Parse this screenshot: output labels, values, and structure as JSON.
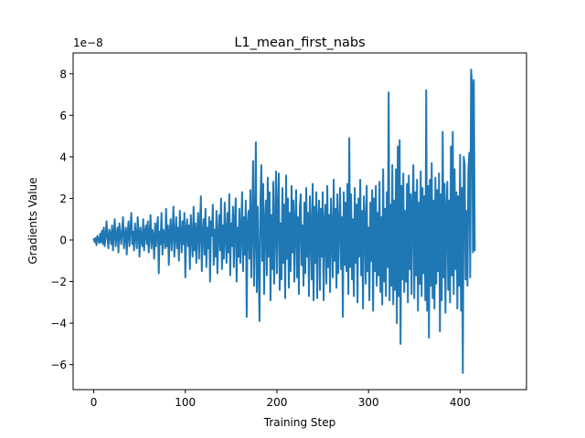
{
  "chart_data": {
    "type": "line",
    "title": "L1_mean_first_nabs",
    "xlabel": "Training Step",
    "ylabel": "Gradients Value",
    "y_offset_label": "1e−8",
    "y_unit_scale": 1e-08,
    "xlim": [
      -22.5,
      472.5
    ],
    "ylim": [
      -7.2,
      9.0
    ],
    "xticks": [
      0,
      100,
      200,
      300,
      400
    ],
    "yticks": [
      -6,
      -4,
      -2,
      0,
      2,
      4,
      6,
      8
    ],
    "grid": false,
    "legend": "none",
    "line_color": "#1f77b4",
    "series": [
      {
        "x_start": 0,
        "x_step": 1,
        "values": [
          0.05,
          -0.1,
          0.1,
          -0.25,
          0.2,
          0.05,
          -0.15,
          0.3,
          -0.1,
          0.45,
          -0.2,
          0.6,
          -0.3,
          0.2,
          0.9,
          0.1,
          -0.4,
          0.5,
          0.3,
          -0.2,
          0.7,
          -0.5,
          0.4,
          1.0,
          -0.3,
          0.2,
          0.6,
          -0.6,
          0.8,
          0.3,
          -0.2,
          0.5,
          1.1,
          -0.4,
          0.2,
          0.6,
          -0.7,
          0.3,
          0.9,
          -0.3,
          0.5,
          1.3,
          -0.2,
          0.4,
          -0.5,
          0.8,
          0.2,
          -0.4,
          1.1,
          0.3,
          -0.8,
          0.6,
          0.1,
          -0.3,
          1.0,
          -0.5,
          0.4,
          0.7,
          -0.2,
          0.9,
          -0.6,
          0.3,
          1.2,
          -0.4,
          0.5,
          0.2,
          -0.9,
          0.8,
          -0.3,
          0.6,
          1.1,
          -1.6,
          0.4,
          -0.2,
          1.3,
          -0.7,
          0.5,
          0.2,
          -0.4,
          1.5,
          -0.3,
          0.7,
          -1.2,
          0.4,
          1.0,
          -0.5,
          0.3,
          1.6,
          -0.8,
          0.2,
          1.1,
          -0.4,
          0.6,
          -1.0,
          1.4,
          0.3,
          -0.6,
          0.9,
          -0.2,
          1.3,
          -1.8,
          0.5,
          1.0,
          -0.3,
          0.7,
          -1.4,
          1.2,
          0.2,
          -0.8,
          1.6,
          -0.5,
          0.8,
          -1.1,
          0.4,
          1.3,
          -0.9,
          0.6,
          2.1,
          -1.5,
          0.3,
          1.0,
          -0.7,
          1.5,
          -1.3,
          0.6,
          -0.4,
          1.1,
          -2.0,
          0.9,
          0.2,
          1.7,
          -1.2,
          0.5,
          -0.8,
          1.4,
          -1.6,
          0.3,
          1.2,
          -0.5,
          2.0,
          -1.4,
          0.7,
          -0.9,
          1.8,
          0.2,
          -1.1,
          1.3,
          -0.6,
          2.2,
          -1.7,
          0.8,
          -0.3,
          1.6,
          -1.3,
          0.9,
          2.0,
          -2.0,
          0.6,
          -0.8,
          1.5,
          -1.1,
          0.4,
          2.3,
          -1.5,
          1.1,
          -0.7,
          1.9,
          -3.7,
          0.8,
          1.4,
          -0.9,
          2.4,
          -1.8,
          1.0,
          3.8,
          -2.2,
          0.5,
          4.7,
          -2.5,
          1.6,
          -1.2,
          -3.9,
          1.8,
          3.6,
          -1.0,
          2.7,
          -2.6,
          0.9,
          1.9,
          -1.7,
          3.0,
          -0.8,
          2.3,
          -2.9,
          1.2,
          -1.4,
          2.8,
          -2.1,
          0.6,
          3.3,
          -1.6,
          1.4,
          3.2,
          -2.4,
          0.8,
          -1.9,
          2.5,
          -1.1,
          1.7,
          -2.8,
          3.1,
          -0.9,
          2.0,
          -2.3,
          1.3,
          -1.5,
          2.6,
          -0.6,
          1.9,
          -2.0,
          0.9,
          2.4,
          -1.8,
          1.1,
          -2.6,
          1.6,
          2.2,
          -1.2,
          0.7,
          -2.2,
          1.8,
          -1.6,
          2.5,
          -0.8,
          1.3,
          -2.7,
          2.1,
          0.6,
          -1.9,
          2.7,
          -2.9,
          1.6,
          -1.1,
          2.3,
          -2.8,
          1.0,
          1.9,
          -2.4,
          1.5,
          -0.8,
          2.3,
          -2.9,
          0.9,
          1.7,
          -2.1,
          2.6,
          -1.3,
          1.2,
          -2.5,
          2.0,
          0.4,
          -1.8,
          2.9,
          -1.0,
          1.5,
          -2.3,
          2.2,
          -1.6,
          0.7,
          2.5,
          -1.4,
          1.1,
          -3.7,
          2.3,
          -1.2,
          1.8,
          -1.5,
          2.7,
          -2.6,
          4.9,
          -1.3,
          2.2,
          -1.9,
          1.0,
          -2.7,
          2.5,
          -1.1,
          1.7,
          -3.0,
          2.0,
          -0.8,
          2.9,
          -1.7,
          1.4,
          -3.3,
          2.1,
          1.0,
          -2.1,
          2.6,
          -1.5,
          0.6,
          -2.9,
          1.8,
          -1.0,
          2.4,
          -3.4,
          2.0,
          -1.5,
          2.6,
          -2.2,
          1.3,
          -1.7,
          2.8,
          -2.5,
          1.1,
          -3.1,
          3.4,
          -2.0,
          1.5,
          -2.7,
          2.3,
          -1.3,
          7.1,
          -2.9,
          1.7,
          -2.2,
          3.6,
          -3.1,
          1.9,
          -2.4,
          3.4,
          -4.0,
          4.5,
          -2.7,
          4.8,
          -5.0,
          2.6,
          -1.9,
          3.2,
          -2.5,
          1.4,
          -2.0,
          2.7,
          -3.0,
          3.1,
          -1.4,
          2.2,
          -2.6,
          1.6,
          3.6,
          -2.8,
          2.3,
          -1.7,
          2.9,
          -3.4,
          1.8,
          -2.1,
          3.3,
          -2.7,
          2.5,
          -1.6,
          2.1,
          -2.9,
          7.2,
          -3.4,
          2.6,
          -4.7,
          2.9,
          -2.2,
          3.7,
          -2.8,
          1.9,
          -3.3,
          3.0,
          -2.1,
          2.4,
          -1.5,
          3.2,
          -4.4,
          2.2,
          -2.9,
          5.2,
          -1.8,
          2.7,
          -3.5,
          1.5,
          2.8,
          -2.4,
          1.9,
          -3.0,
          4.5,
          -1.7,
          5.2,
          -2.6,
          3.4,
          -1.4,
          2.3,
          -3.3,
          2.1,
          -2.2,
          4.1,
          -3.4,
          2.5,
          -6.4,
          4.0,
          3.6,
          -1.9,
          1.4,
          -2.2,
          3.3,
          4.2,
          -1.8,
          8.2,
          7.5,
          -0.6,
          7.7,
          -0.5
        ]
      }
    ]
  }
}
